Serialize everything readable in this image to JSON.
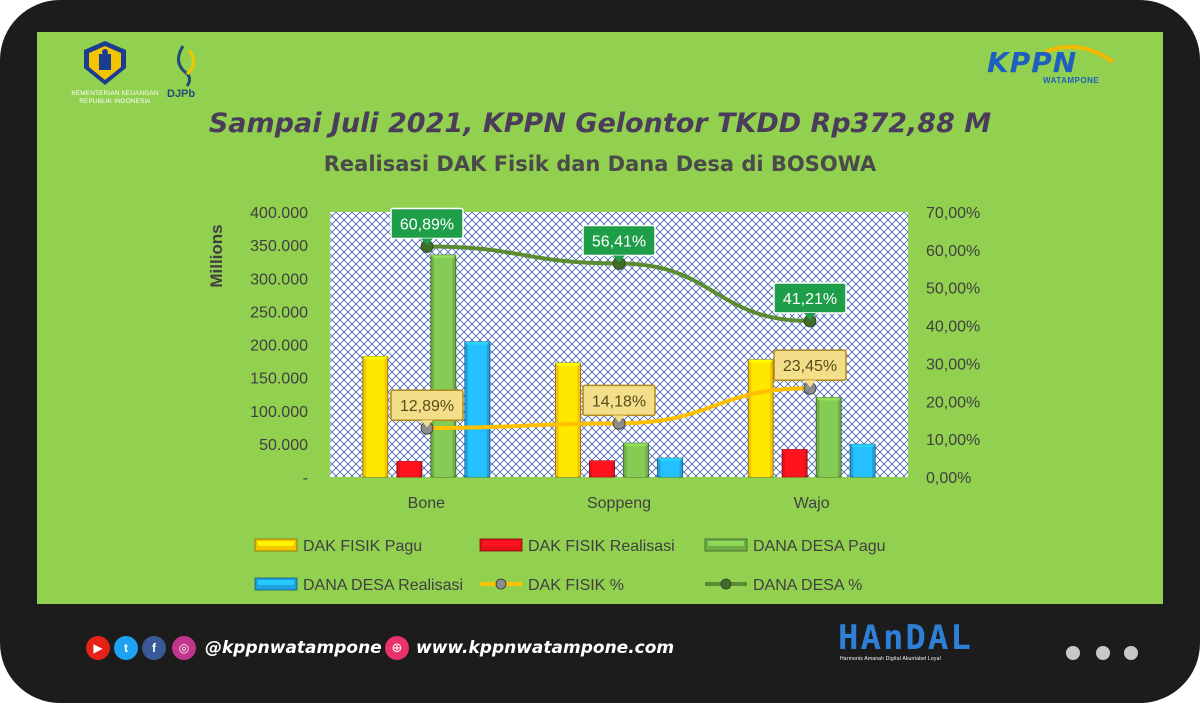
{
  "header": {
    "kemenkeu_line1": "KEMENTERIAN KEUANGAN",
    "kemenkeu_line2": "REPUBLIK INDONESIA",
    "djpb": "DJPb",
    "kppn": "KPPN",
    "kppn_sub": "WATAMPONE"
  },
  "main_title": "Sampai Juli 2021, KPPN Gelontor TKDD Rp372,88 M",
  "footer": {
    "handle": "@kppnwatampone",
    "website": "www.kppnwatampone.com",
    "handal": "HAnDAL",
    "handal_sub": "Harmonis   Amanah   Digital   Akuntabel   Loyal"
  },
  "colors": {
    "panel_bg": "#92d050",
    "dak_pagu": "#f5c400",
    "dak_realisasi": "#e8101a",
    "desa_pagu": "#70ad47",
    "desa_realisasi": "#1fa3e0",
    "dak_pct_line": "#ffc000",
    "desa_pct_line": "#5b8c32"
  },
  "chart_data": {
    "type": "bar",
    "title": "Realisasi DAK Fisik dan Dana Desa di BOSOWA",
    "ylabel": "Millions",
    "categories": [
      "Bone",
      "Soppeng",
      "Wajo"
    ],
    "ylim": [
      0,
      400000
    ],
    "y_ticks": [
      "-",
      "50.000",
      "100.000",
      "150.000",
      "200.000",
      "250.000",
      "300.000",
      "350.000",
      "400.000"
    ],
    "y2lim": [
      0,
      70
    ],
    "y2_ticks": [
      "0,00%",
      "10,00%",
      "20,00%",
      "30,00%",
      "40,00%",
      "50,00%",
      "60,00%",
      "70,00%"
    ],
    "series": [
      {
        "name": "DAK FISIK Pagu",
        "values": [
          182000,
          172000,
          177000
        ]
      },
      {
        "name": "DAK FISIK Realisasi",
        "values": [
          23500,
          24500,
          41500
        ]
      },
      {
        "name": "DANA DESA Pagu",
        "values": [
          335000,
          51000,
          120000
        ]
      },
      {
        "name": "DANA DESA Realisasi",
        "values": [
          204000,
          28500,
          49500
        ]
      }
    ],
    "line_series": [
      {
        "name": "DAK FISIK %",
        "values": [
          12.89,
          14.18,
          23.45
        ],
        "labels": [
          "12,89%",
          "14,18%",
          "23,45%"
        ]
      },
      {
        "name": "DANA DESA %",
        "values": [
          60.89,
          56.41,
          41.21
        ],
        "labels": [
          "60,89%",
          "56,41%",
          "41,21%"
        ]
      }
    ],
    "legend": [
      "DAK FISIK Pagu",
      "DAK FISIK Realisasi",
      "DANA DESA Pagu",
      "DANA DESA Realisasi",
      "DAK FISIK %",
      "DANA DESA %"
    ],
    "legend_position": "bottom"
  }
}
